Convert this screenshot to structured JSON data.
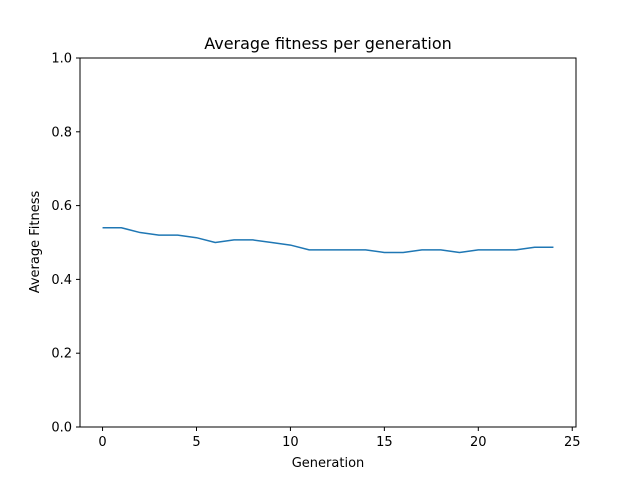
{
  "chart_data": {
    "type": "line",
    "title": "Average fitness per generation",
    "xlabel": "Generation",
    "ylabel": "Average Fitness",
    "xlim": [
      -1.2,
      25.2
    ],
    "ylim": [
      0.0,
      1.0
    ],
    "xticks": [
      0,
      5,
      10,
      15,
      20,
      25
    ],
    "xtick_labels": [
      "0",
      "5",
      "10",
      "15",
      "20",
      "25"
    ],
    "yticks": [
      0.0,
      0.2,
      0.4,
      0.6,
      0.8,
      1.0
    ],
    "ytick_labels": [
      "0.0",
      "0.2",
      "0.4",
      "0.6",
      "0.8",
      "1.0"
    ],
    "grid": false,
    "series": [
      {
        "color": "#1f77b4",
        "x": [
          0,
          1,
          2,
          3,
          4,
          5,
          6,
          7,
          8,
          9,
          10,
          11,
          12,
          13,
          14,
          15,
          16,
          17,
          18,
          19,
          20,
          21,
          22,
          23,
          24
        ],
        "values": [
          0.54,
          0.54,
          0.527,
          0.52,
          0.52,
          0.513,
          0.5,
          0.507,
          0.507,
          0.5,
          0.493,
          0.48,
          0.48,
          0.48,
          0.48,
          0.473,
          0.473,
          0.48,
          0.48,
          0.473,
          0.48,
          0.48,
          0.48,
          0.487,
          0.487
        ]
      }
    ]
  }
}
